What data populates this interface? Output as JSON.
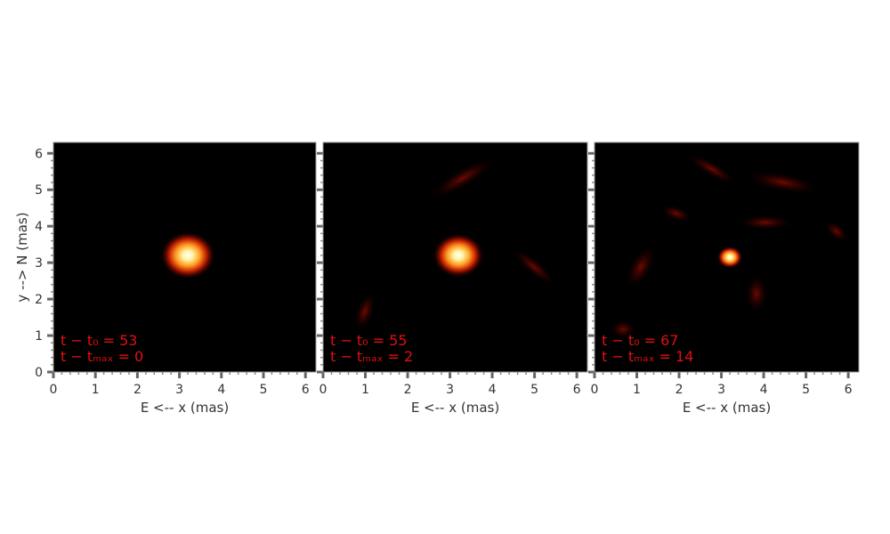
{
  "chart_data": [
    {
      "type": "image",
      "xlabel": "E <-- x (mas)",
      "ylabel": "y --> N (mas)",
      "xlim": [
        0,
        6.25
      ],
      "ylim": [
        0,
        6.3
      ],
      "xticks": [
        0,
        1,
        2,
        3,
        4,
        5,
        6
      ],
      "yticks": [
        0,
        1,
        2,
        3,
        4,
        5,
        6
      ],
      "ytick_labels": true,
      "annotation": [
        "t − t₀ = 53",
        "t − tₘₐₓ = 0"
      ],
      "annotation_color": "#e01010",
      "peak": {
        "x": 3.2,
        "y": 3.2,
        "radius": 0.65
      }
    },
    {
      "type": "image",
      "xlabel": "E <-- x (mas)",
      "xlim": [
        0,
        6.25
      ],
      "ylim": [
        0,
        6.3
      ],
      "xticks": [
        0,
        1,
        2,
        3,
        4,
        5,
        6
      ],
      "yticks": [
        0,
        1,
        2,
        3,
        4,
        5,
        6
      ],
      "ytick_labels": false,
      "annotation": [
        "t − t₀ = 55",
        "t − tₘₐₓ = 2"
      ],
      "annotation_color": "#e01010",
      "peak": {
        "x": 3.2,
        "y": 3.2,
        "radius": 0.6
      }
    },
    {
      "type": "image",
      "xlabel": "E <-- x (mas)",
      "xlim": [
        0,
        6.25
      ],
      "ylim": [
        0,
        6.3
      ],
      "xticks": [
        0,
        1,
        2,
        3,
        4,
        5,
        6
      ],
      "yticks": [
        0,
        1,
        2,
        3,
        4,
        5,
        6
      ],
      "ytick_labels": false,
      "annotation": [
        "t − t₀ = 67",
        "t − tₘₐₓ = 14"
      ],
      "annotation_color": "#e01010",
      "peak": {
        "x": 3.2,
        "y": 3.15,
        "radius": 0.3
      }
    }
  ]
}
